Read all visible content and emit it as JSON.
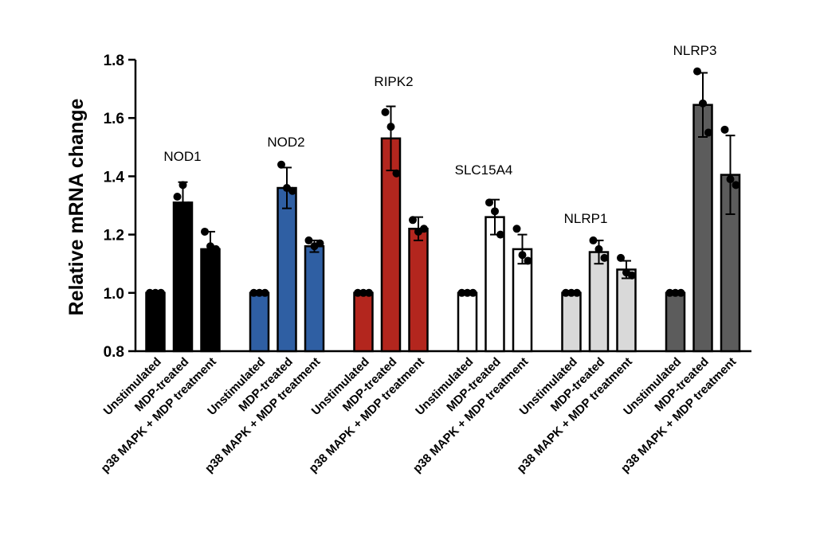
{
  "chart_data": {
    "type": "bar",
    "title": "",
    "xlabel": "",
    "ylabel": "Relative mRNA change",
    "ylim": [
      0.8,
      1.8
    ],
    "yticks": [
      "0.8",
      "1.0",
      "1.2",
      "1.4",
      "1.6",
      "1.8"
    ],
    "grid": false,
    "legend": "none",
    "categories": [
      "Unstimulated",
      "MDP-treated",
      "p38 MAPK + MDP treatment"
    ],
    "groups": [
      {
        "name": "NOD1",
        "fill": "#000000",
        "values": [
          1.0,
          1.31,
          1.15
        ],
        "errors": [
          0.0,
          0.07,
          0.06
        ],
        "points": [
          [
            1.0,
            1.0,
            1.0
          ],
          [
            1.33,
            1.37,
            1.3
          ],
          [
            1.21,
            1.16,
            1.15
          ]
        ]
      },
      {
        "name": "NOD2",
        "fill": "#2f5fa3",
        "values": [
          1.0,
          1.36,
          1.16
        ],
        "errors": [
          0.0,
          0.07,
          0.02
        ],
        "points": [
          [
            1.0,
            1.0,
            1.0
          ],
          [
            1.44,
            1.36,
            1.35
          ],
          [
            1.18,
            1.16,
            1.17
          ]
        ]
      },
      {
        "name": "RIPK2",
        "fill": "#b3261e",
        "values": [
          1.0,
          1.53,
          1.22
        ],
        "errors": [
          0.0,
          0.11,
          0.04
        ],
        "points": [
          [
            1.0,
            1.0,
            1.0
          ],
          [
            1.62,
            1.57,
            1.41
          ],
          [
            1.25,
            1.21,
            1.22
          ]
        ]
      },
      {
        "name": "SLC15A4",
        "fill": "#ffffff",
        "values": [
          1.0,
          1.26,
          1.15
        ],
        "errors": [
          0.0,
          0.06,
          0.05
        ],
        "points": [
          [
            1.0,
            1.0,
            1.0
          ],
          [
            1.31,
            1.28,
            1.2
          ],
          [
            1.22,
            1.13,
            1.11
          ]
        ]
      },
      {
        "name": "NLRP1",
        "fill": "#d9d9d9",
        "values": [
          1.0,
          1.14,
          1.08
        ],
        "errors": [
          0.0,
          0.04,
          0.03
        ],
        "points": [
          [
            1.0,
            1.0,
            1.0
          ],
          [
            1.18,
            1.15,
            1.12
          ],
          [
            1.12,
            1.07,
            1.06
          ]
        ]
      },
      {
        "name": "NLRP3",
        "fill": "#5c5c5c",
        "values": [
          1.0,
          1.645,
          1.405
        ],
        "errors": [
          0.0,
          0.11,
          0.135
        ],
        "points": [
          [
            1.0,
            1.0,
            1.0
          ],
          [
            1.76,
            1.65,
            1.55
          ],
          [
            1.56,
            1.39,
            1.37
          ]
        ]
      }
    ]
  }
}
